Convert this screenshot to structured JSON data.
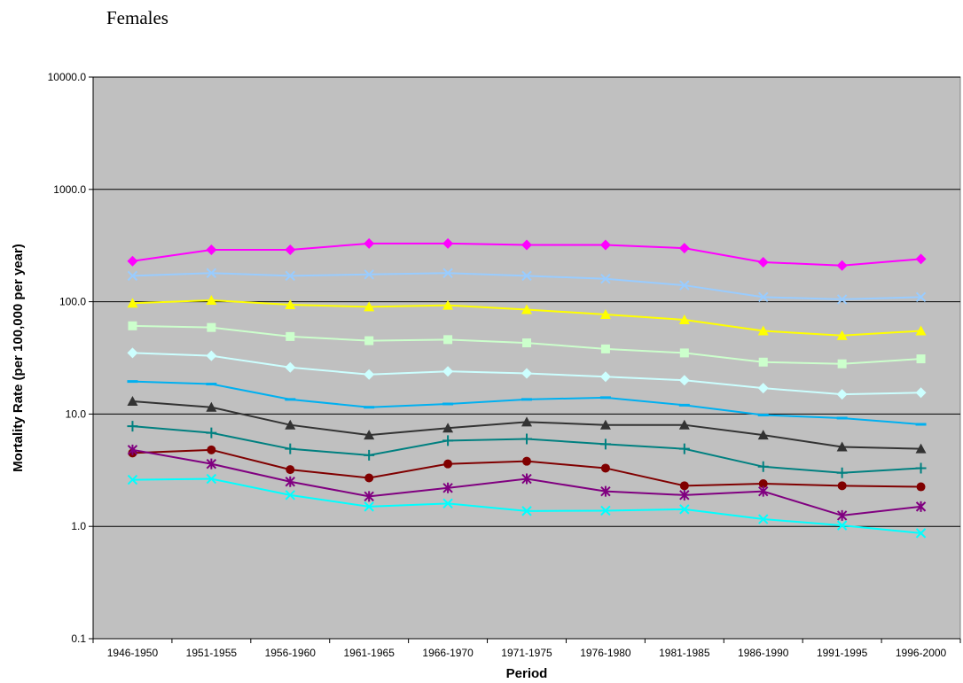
{
  "chart_data": {
    "type": "line",
    "title": "Females",
    "xlabel": "Period",
    "ylabel": "Mortality Rate (per 100,000 per year)",
    "y_scale": "log",
    "ylim": [
      0.1,
      10000
    ],
    "y_tick_labels": [
      "0.1",
      "1.0",
      "10.0",
      "100.0",
      "1000.0",
      "10000.0"
    ],
    "grid": true,
    "legend": "none",
    "plot_background": "#c0c0c0",
    "categories": [
      "1946-1950",
      "1951-1955",
      "1956-1960",
      "1961-1965",
      "1966-1970",
      "1971-1975",
      "1976-1980",
      "1981-1985",
      "1986-1990",
      "1991-1995",
      "1996-2000"
    ],
    "series": [
      {
        "color": "#ff00ff",
        "marker": "diamond",
        "values": [
          230,
          290,
          290,
          330,
          330,
          320,
          320,
          300,
          225,
          210,
          240
        ]
      },
      {
        "color": "#99ccff",
        "marker": "x",
        "values": [
          170,
          180,
          170,
          175,
          180,
          170,
          160,
          140,
          110,
          105,
          110
        ]
      },
      {
        "color": "#ffff00",
        "marker": "triangle",
        "values": [
          97,
          103,
          94,
          90,
          93,
          85,
          77,
          69,
          55,
          50,
          55
        ]
      },
      {
        "color": "#ccffcc",
        "marker": "square",
        "values": [
          61,
          59,
          49,
          45,
          46,
          43,
          38,
          35,
          29,
          28,
          31
        ]
      },
      {
        "color": "#ccffff",
        "marker": "diamond",
        "values": [
          35,
          33,
          26,
          22.5,
          24,
          23,
          21.5,
          20,
          17,
          15,
          15.5
        ]
      },
      {
        "color": "#00b0f0",
        "marker": "dash",
        "values": [
          19.5,
          18.5,
          13.5,
          11.5,
          12.3,
          13.5,
          14,
          12,
          9.8,
          9.2,
          8.1
        ]
      },
      {
        "color": "#333333",
        "marker": "triangle",
        "values": [
          13,
          11.5,
          8,
          6.5,
          7.5,
          8.5,
          8,
          8,
          6.5,
          5.1,
          4.9
        ]
      },
      {
        "color": "#008080",
        "marker": "plus",
        "values": [
          7.8,
          6.8,
          4.9,
          4.3,
          5.8,
          6,
          5.4,
          4.9,
          3.4,
          3,
          3.3
        ]
      },
      {
        "color": "#800000",
        "marker": "circle",
        "values": [
          4.5,
          4.8,
          3.2,
          2.7,
          3.6,
          3.8,
          3.3,
          2.3,
          2.4,
          2.3,
          2.25
        ]
      },
      {
        "color": "#800080",
        "marker": "asterisk",
        "values": [
          4.8,
          3.6,
          2.5,
          1.85,
          2.2,
          2.65,
          2.05,
          1.9,
          2.05,
          1.25,
          1.5
        ]
      },
      {
        "color": "#00ffff",
        "marker": "x",
        "values": [
          2.6,
          2.65,
          1.9,
          1.5,
          1.6,
          1.37,
          1.38,
          1.42,
          1.16,
          1.02,
          0.87
        ]
      }
    ]
  }
}
